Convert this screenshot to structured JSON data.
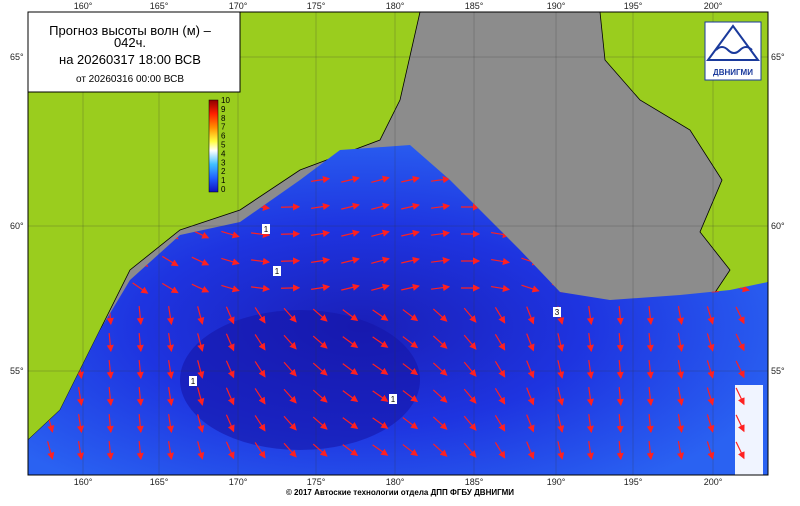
{
  "header": {
    "line1": "Прогноз высоты волн (м) –",
    "line2": "042ч.",
    "valid": "на 20260317 18:00 ВСВ",
    "issued": "от 20260316 00:00 ВСВ"
  },
  "logo": "ДВНИГМИ",
  "longitudes": [
    "160°",
    "165°",
    "170°",
    "175°",
    "180°",
    "185°",
    "190°",
    "195°",
    "200°"
  ],
  "latitudes": [
    "65°",
    "60°",
    "55°"
  ],
  "colorbar": [
    "10",
    "9",
    "8",
    "7",
    "6",
    "5",
    "4",
    "3",
    "2",
    "1",
    "0"
  ],
  "contour_labels": [
    "1",
    "1",
    "1",
    "1",
    "3"
  ],
  "footer": "© 2017 Автоские технологии отдела ДПП ФГБУ ДВНИГМИ"
}
